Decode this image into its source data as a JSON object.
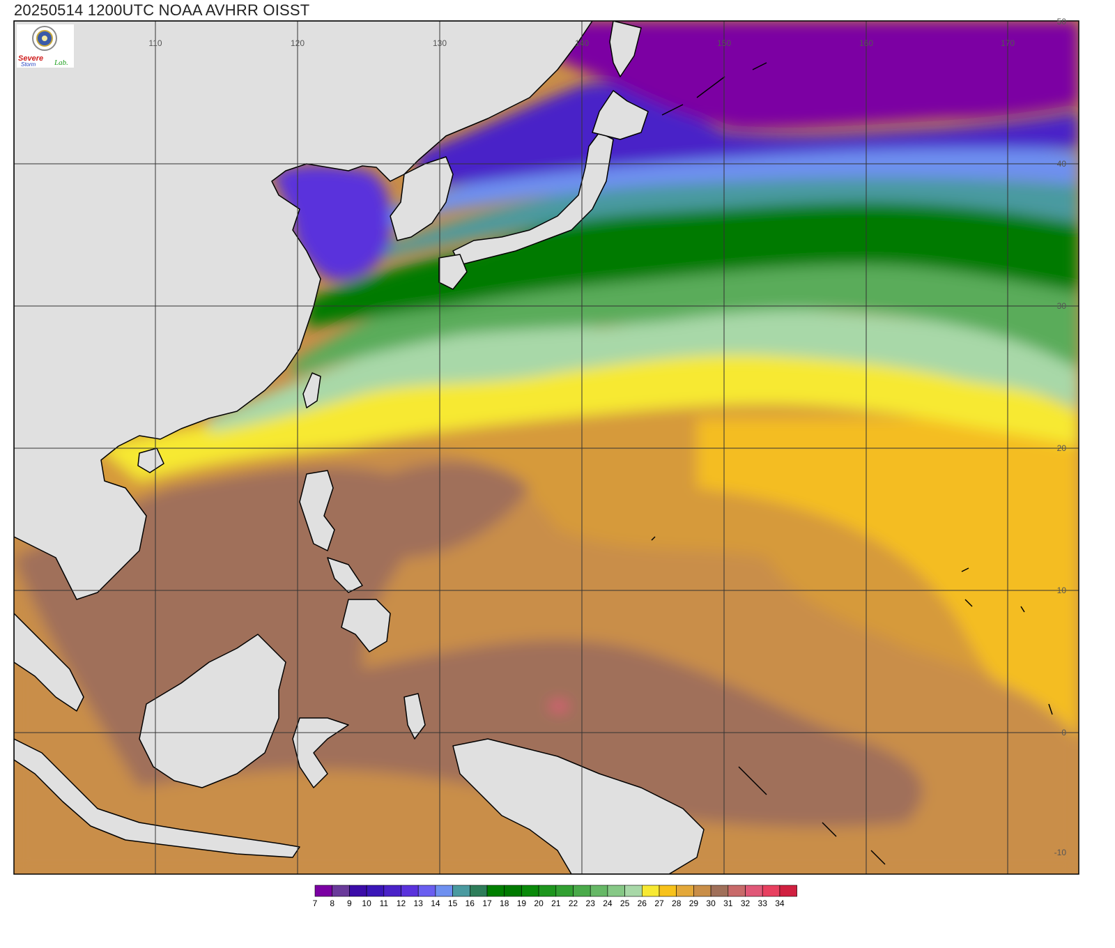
{
  "title": "20250514 1200UTC NOAA AVHRR OISST",
  "logo": {
    "text_severe": "Severe",
    "text_storm": "Storm",
    "text_lab": "Lab."
  },
  "map": {
    "lon_ticks": [
      "110",
      "120",
      "130",
      "140",
      "150",
      "160",
      "170"
    ],
    "lat_ticks": [
      "50",
      "40",
      "30",
      "20",
      "10",
      "0",
      "-10"
    ],
    "land_color": "#e0e0e0",
    "coast_color": "#000000",
    "grid_color": "#333333",
    "regions": [
      {
        "name": "north-pacific-cold",
        "sst": "7",
        "color": "#7b00a3"
      },
      {
        "name": "kuroshio-extension",
        "sst": "18",
        "color": "#007f00"
      },
      {
        "name": "subtropical-band",
        "sst": "27",
        "color": "#f7e933"
      },
      {
        "name": "warm-pool",
        "sst": "30",
        "color": "#a0705a"
      },
      {
        "name": "hotspot",
        "sst": "32",
        "color": "#e06080"
      }
    ]
  },
  "colorbar": {
    "labels": [
      "7",
      "8",
      "9",
      "10",
      "11",
      "12",
      "13",
      "14",
      "15",
      "16",
      "17",
      "18",
      "19",
      "20",
      "21",
      "22",
      "23",
      "24",
      "25",
      "26",
      "27",
      "28",
      "29",
      "30",
      "31",
      "32",
      "33",
      "34"
    ],
    "colors": [
      "#7b00a3",
      "#6a3a9a",
      "#3b0ca8",
      "#3a16b8",
      "#4a22c8",
      "#5a32dc",
      "#6a5ef0",
      "#6e90f0",
      "#4a9aa0",
      "#2e7d5a",
      "#007f00",
      "#007a00",
      "#0a8a0a",
      "#1e961e",
      "#32a032",
      "#4aaa4a",
      "#66b866",
      "#86c886",
      "#a8d8a8",
      "#f7e933",
      "#f7c21b",
      "#e3a83a",
      "#c98e48",
      "#a0705a",
      "#c86a6a",
      "#e05878",
      "#e84060",
      "#d02040"
    ]
  }
}
